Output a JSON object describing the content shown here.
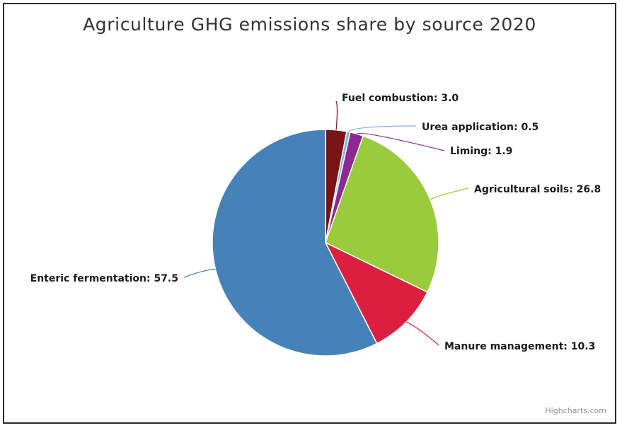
{
  "chart_data": {
    "type": "pie",
    "title": "Agriculture GHG emissions share by source 2020",
    "slices": [
      {
        "label": "Fuel combustion",
        "value": 3.0,
        "color": "#7a1415"
      },
      {
        "label": "Urea application",
        "value": 0.5,
        "color": "#7fb2e5"
      },
      {
        "label": "Liming",
        "value": 1.9,
        "color": "#8a2b8f"
      },
      {
        "label": "Agricultural soils",
        "value": 26.8,
        "color": "#9acb3c"
      },
      {
        "label": "Manure management",
        "value": 10.3,
        "color": "#dc1f3f"
      },
      {
        "label": "Enteric fermentation",
        "value": 57.5,
        "color": "#4682b8"
      }
    ]
  },
  "credit": "Highcharts.com"
}
